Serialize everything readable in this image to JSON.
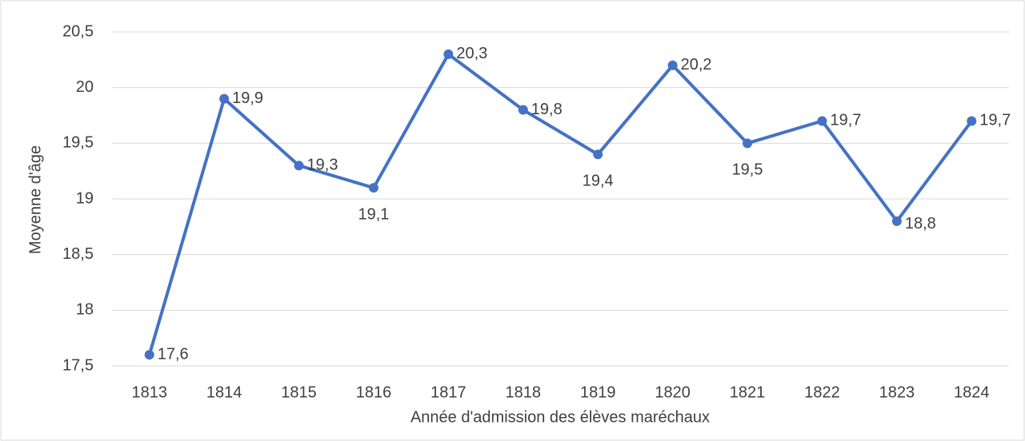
{
  "chart_data": {
    "type": "line",
    "x_label": "Année d'admission des élèves maréchaux",
    "y_label": "Moyenne d'âge",
    "categories": [
      "1813",
      "1814",
      "1815",
      "1816",
      "1817",
      "1818",
      "1819",
      "1820",
      "1821",
      "1822",
      "1823",
      "1824"
    ],
    "series": [
      {
        "name": "Moyenne d'âge",
        "color": "#4472c4",
        "values": [
          17.6,
          19.9,
          19.3,
          19.1,
          20.3,
          19.8,
          19.4,
          20.2,
          19.5,
          19.7,
          18.8,
          19.7
        ],
        "value_labels": [
          "17,6",
          "19,9",
          "19,3",
          "19,1",
          "20,3",
          "19,8",
          "19,4",
          "20,2",
          "19,5",
          "19,7",
          "18,8",
          "19,7"
        ]
      }
    ],
    "ylim": [
      17.5,
      20.5
    ],
    "yticks": [
      {
        "value": 17.5,
        "label": "17,5"
      },
      18,
      {
        "value": 18.5,
        "label": "18,5"
      },
      19,
      {
        "value": 19.5,
        "label": "19,5"
      },
      20,
      {
        "value": 20.5,
        "label": "20,5"
      }
    ],
    "grid": true
  }
}
